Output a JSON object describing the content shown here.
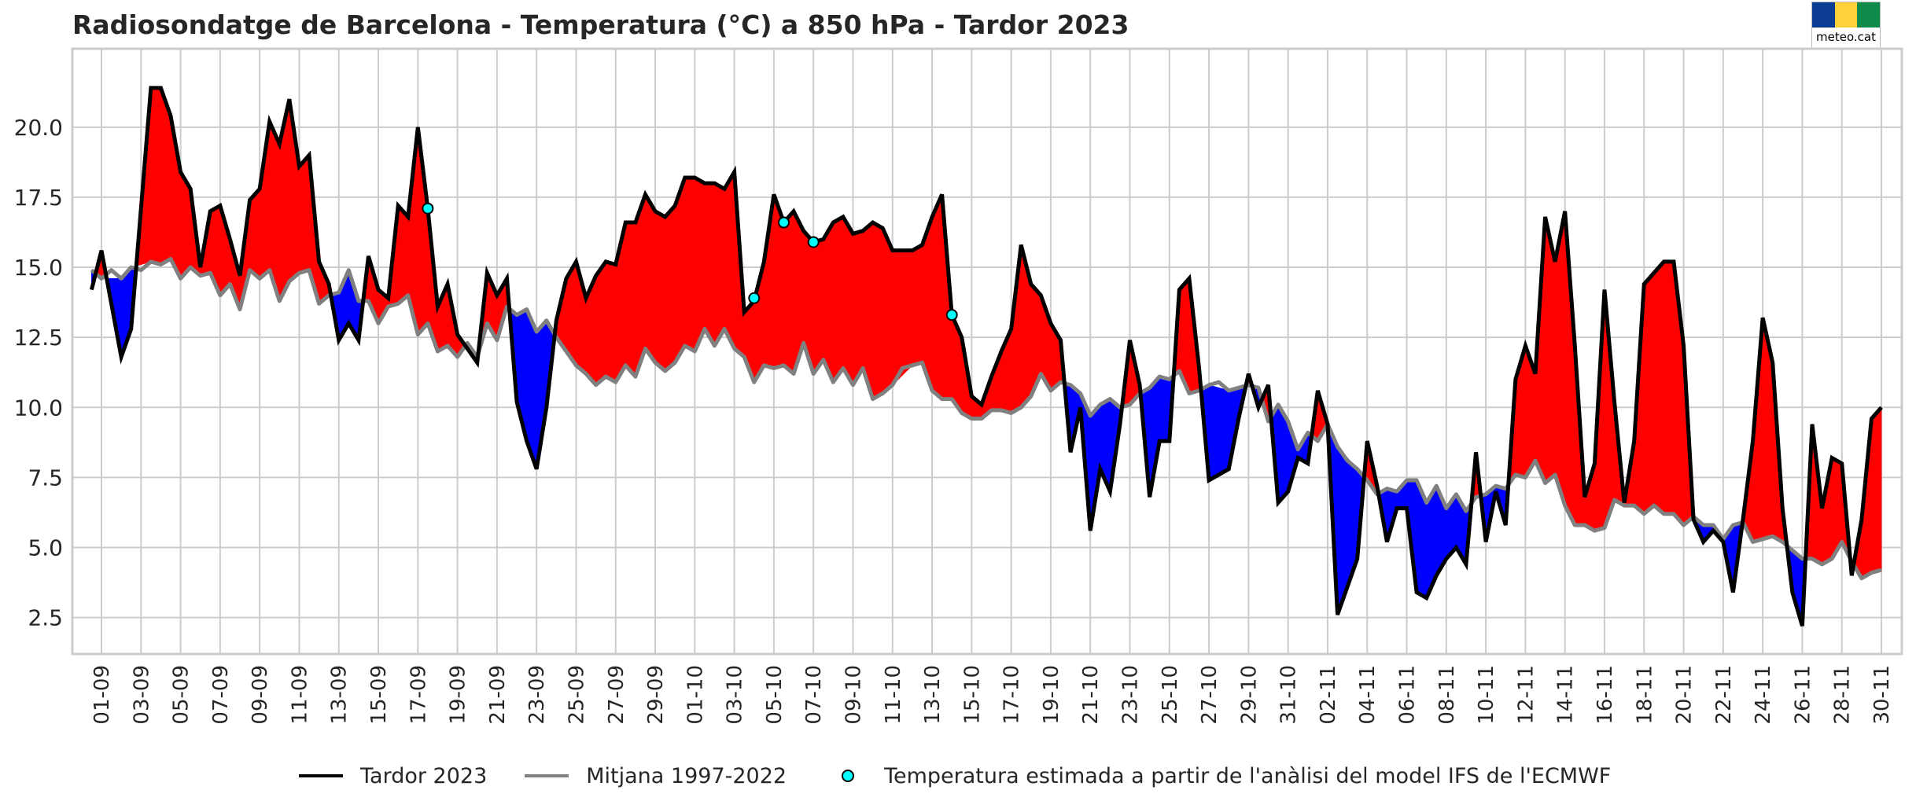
{
  "title": "Radiosondatge de Barcelona - Temperatura (°C) a 850 hPa - Tardor 2023",
  "logo": {
    "text": "meteo.cat",
    "colors": [
      "#0a3d91",
      "#ffd23c",
      "#0f8a4a"
    ]
  },
  "legend": [
    {
      "label": "Tardor 2023",
      "color": "#000000",
      "kind": "line"
    },
    {
      "label": "Mitjana 1997-2022",
      "color": "#808080",
      "kind": "line"
    },
    {
      "label": "Temperatura estimada a partir de l'anàlisi del model IFS de l'ECMWF",
      "color": "#00ffff",
      "kind": "dot"
    }
  ],
  "chart_data": {
    "type": "line",
    "title": "Radiosondatge de Barcelona - Temperatura (°C) a 850 hPa - Tardor 2023",
    "xlabel": "",
    "ylabel": "",
    "x_unit": "days since 01-09",
    "xlim": [
      -1.5,
      91
    ],
    "ylim": [
      1.2,
      22.8
    ],
    "yticks": [
      2.5,
      5.0,
      7.5,
      10.0,
      12.5,
      15.0,
      17.5,
      20.0
    ],
    "ytick_labels": [
      "2.5",
      "5.0",
      "7.5",
      "10.0",
      "12.5",
      "15.0",
      "17.5",
      "20.0"
    ],
    "xtick_labels": [
      "01-09",
      "03-09",
      "05-09",
      "07-09",
      "09-09",
      "11-09",
      "13-09",
      "15-09",
      "17-09",
      "19-09",
      "21-09",
      "23-09",
      "25-09",
      "27-09",
      "29-09",
      "01-10",
      "03-10",
      "05-10",
      "07-10",
      "09-10",
      "11-10",
      "13-10",
      "15-10",
      "17-10",
      "19-10",
      "21-10",
      "23-10",
      "25-10",
      "27-10",
      "29-10",
      "31-10",
      "02-11",
      "04-11",
      "06-11",
      "08-11",
      "10-11",
      "12-11",
      "14-11",
      "16-11",
      "18-11",
      "20-11",
      "22-11",
      "24-11",
      "26-11",
      "28-11",
      "30-11"
    ],
    "grid": true,
    "fill_above_color": "#ff0000",
    "fill_below_color": "#0000ff",
    "series": [
      {
        "name": "Tardor 2023",
        "color": "#000000",
        "x": [
          -0.5,
          0,
          1,
          1.5,
          2.5,
          3,
          3.5,
          4,
          4.5,
          5,
          5.5,
          6,
          6.5,
          7,
          7.5,
          8,
          8.5,
          9,
          9.5,
          10,
          10.5,
          11,
          11.5,
          12,
          12.5,
          13,
          13.5,
          14,
          14.5,
          15,
          15.5,
          16,
          16.5,
          17,
          17.5,
          18,
          18.5,
          19,
          19.5,
          20,
          20.5,
          21,
          21.5,
          22,
          22.5,
          23,
          23.5,
          24,
          24.5,
          25,
          25.5,
          26,
          26.5,
          27,
          27.5,
          28,
          28.5,
          29,
          29.5,
          30,
          30.5,
          31,
          31.5,
          32,
          32.5,
          33,
          33.5,
          34,
          34.5,
          35,
          35.5,
          36,
          36.5,
          37,
          37.5,
          38,
          38.5,
          39,
          39.5,
          40,
          41,
          41.5,
          42,
          42.5,
          43,
          43.5,
          44,
          44.5,
          45,
          45.5,
          46,
          46.5,
          47,
          47.5,
          48,
          48.5,
          49,
          49.5,
          50,
          50.5,
          51,
          51.5,
          52,
          52.5,
          53,
          53.5,
          54,
          54.5,
          55,
          55.5,
          56,
          57,
          57.5,
          58,
          58.5,
          59,
          59.5,
          60,
          60.5,
          61,
          61.5,
          62,
          62.5,
          63.5,
          64,
          64.5,
          65,
          65.5,
          66,
          66.5,
          67,
          67.5,
          68,
          68.5,
          69,
          69.5,
          70,
          70.5,
          71,
          71.5,
          72,
          72.5,
          73,
          73.5,
          74,
          74.5,
          75,
          75.5,
          76,
          76.5,
          77,
          77.5,
          78,
          78.5,
          79,
          79.5,
          80,
          80.5,
          81,
          81.5,
          82,
          82.5,
          83,
          83.5,
          84,
          84.5,
          85,
          85.5,
          86,
          86.5,
          87,
          87.5,
          88,
          88.5,
          89,
          89.5,
          90
        ],
        "y": [
          14.2,
          15.6,
          11.8,
          12.8,
          21.4,
          21.4,
          20.4,
          18.4,
          17.8,
          15.0,
          17.0,
          17.2,
          16.0,
          14.7,
          17.4,
          17.8,
          20.2,
          19.4,
          21.0,
          18.6,
          19.0,
          15.2,
          14.4,
          12.4,
          13.0,
          12.4,
          15.4,
          14.2,
          13.9,
          17.2,
          16.8,
          20.0,
          17.1,
          13.6,
          14.4,
          12.6,
          12.1,
          11.6,
          14.8,
          14.0,
          14.6,
          10.2,
          8.8,
          7.8,
          10.0,
          13.1,
          14.6,
          15.2,
          13.9,
          14.7,
          15.2,
          15.1,
          16.6,
          16.6,
          17.6,
          17.0,
          16.8,
          17.2,
          18.2,
          18.2,
          18.0,
          18.0,
          17.8,
          18.4,
          13.4,
          13.8,
          15.2,
          17.6,
          16.6,
          17.0,
          16.3,
          15.9,
          16.0,
          16.6,
          16.8,
          16.2,
          16.3,
          16.6,
          16.4,
          15.6,
          15.6,
          15.8,
          16.8,
          17.6,
          13.3,
          12.5,
          10.4,
          10.1,
          11.1,
          12.0,
          12.8,
          15.8,
          14.4,
          14.0,
          13.0,
          12.4,
          8.4,
          10.0,
          5.6,
          7.8,
          7.0,
          9.4,
          12.4,
          10.8,
          6.8,
          8.8,
          8.8,
          14.2,
          14.6,
          11.4,
          7.4,
          7.8,
          9.6,
          11.2,
          10.0,
          10.8,
          6.6,
          7.0,
          8.2,
          8.0,
          10.6,
          9.4,
          2.6,
          4.6,
          8.8,
          7.2,
          5.2,
          6.4,
          6.4,
          3.4,
          3.2,
          4.0,
          4.6,
          5.0,
          4.4,
          8.4,
          5.2,
          7.0,
          5.8,
          11.0,
          12.2,
          11.2,
          16.8,
          15.2,
          17.0,
          12.2,
          6.8,
          8.0,
          14.2,
          10.2,
          6.6,
          8.8,
          14.4,
          14.8,
          15.2,
          15.2,
          12.2,
          6.0,
          5.2,
          5.6,
          5.2,
          3.4,
          6.0,
          8.8,
          13.2,
          11.6,
          6.4,
          3.4,
          2.2,
          9.4,
          6.4,
          8.2,
          8.0,
          4.0,
          6.0,
          9.6,
          10.0
        ]
      },
      {
        "name": "Mitjana 1997-2022",
        "color": "#808080",
        "x": [
          -0.5,
          0,
          0.5,
          1,
          1.5,
          2,
          2.5,
          3,
          3.5,
          4,
          4.5,
          5,
          5.5,
          6,
          6.5,
          7,
          7.5,
          8,
          8.5,
          9,
          9.5,
          10,
          10.5,
          11,
          11.5,
          12,
          12.5,
          13,
          13.5,
          14,
          14.5,
          15,
          15.5,
          16,
          16.5,
          17,
          17.5,
          18,
          18.5,
          19,
          19.5,
          20,
          20.5,
          21,
          21.5,
          22,
          22.5,
          23,
          23.5,
          24,
          24.5,
          25,
          25.5,
          26,
          26.5,
          27,
          27.5,
          28,
          28.5,
          29,
          29.5,
          30,
          30.5,
          31,
          31.5,
          32,
          32.5,
          33,
          33.5,
          34,
          34.5,
          35,
          35.5,
          36,
          36.5,
          37,
          37.5,
          38,
          38.5,
          39,
          39.5,
          40,
          40.5,
          41,
          41.5,
          42,
          42.5,
          43,
          43.5,
          44,
          44.5,
          45,
          45.5,
          46,
          46.5,
          47,
          47.5,
          48,
          48.5,
          49,
          49.5,
          50,
          50.5,
          51,
          51.5,
          52,
          52.5,
          53,
          53.5,
          54,
          54.5,
          55,
          55.5,
          56,
          56.5,
          57,
          57.5,
          58,
          58.5,
          59,
          59.5,
          60,
          60.5,
          61,
          61.5,
          62,
          62.5,
          63,
          63.5,
          64,
          64.5,
          65,
          65.5,
          66,
          66.5,
          67,
          67.5,
          68,
          68.5,
          69,
          69.5,
          70,
          70.5,
          71,
          71.5,
          72,
          72.5,
          73,
          73.5,
          74,
          74.5,
          75,
          75.5,
          76,
          76.5,
          77,
          77.5,
          78,
          78.5,
          79,
          79.5,
          80,
          80.5,
          81,
          81.5,
          82,
          82.5,
          83,
          83.5,
          84,
          84.5,
          85,
          85.5,
          86,
          86.5,
          87,
          87.5,
          88,
          88.5,
          89,
          89.5,
          90
        ],
        "y": [
          14.9,
          14.6,
          14.9,
          14.6,
          15.0,
          14.9,
          15.2,
          15.1,
          15.3,
          14.6,
          15.0,
          14.7,
          14.8,
          14.0,
          14.4,
          13.5,
          14.9,
          14.6,
          14.9,
          13.8,
          14.5,
          14.8,
          14.9,
          13.7,
          14.0,
          14.1,
          14.9,
          13.8,
          13.8,
          13.0,
          13.6,
          13.7,
          14.0,
          12.6,
          13.0,
          12.0,
          12.2,
          11.8,
          12.3,
          11.8,
          13.0,
          12.4,
          13.6,
          13.3,
          13.5,
          12.7,
          13.1,
          12.5,
          12.0,
          11.5,
          11.2,
          10.8,
          11.1,
          10.9,
          11.5,
          11.1,
          12.1,
          11.6,
          11.3,
          11.6,
          12.2,
          12.0,
          12.8,
          12.2,
          12.8,
          12.1,
          11.8,
          10.9,
          11.5,
          11.4,
          11.5,
          11.2,
          12.3,
          11.2,
          11.7,
          10.9,
          11.4,
          10.8,
          11.4,
          10.3,
          10.5,
          10.8,
          11.4,
          11.5,
          11.6,
          10.6,
          10.3,
          10.3,
          9.8,
          9.6,
          9.6,
          9.9,
          9.9,
          9.8,
          10.0,
          10.4,
          11.2,
          10.6,
          10.9,
          10.8,
          10.5,
          9.7,
          10.1,
          10.3,
          10.0,
          10.1,
          10.5,
          10.7,
          11.1,
          11.0,
          11.3,
          10.5,
          10.6,
          10.8,
          10.9,
          10.6,
          10.7,
          10.8,
          10.7,
          9.5,
          10.1,
          9.5,
          8.5,
          9.1,
          8.8,
          9.4,
          8.6,
          8.1,
          7.8,
          7.4,
          6.9,
          7.1,
          7.0,
          7.4,
          7.4,
          6.6,
          7.2,
          6.4,
          6.9,
          6.3,
          6.8,
          6.9,
          7.2,
          7.1,
          7.6,
          7.5,
          8.1,
          7.3,
          7.6,
          6.5,
          5.8,
          5.8,
          5.6,
          5.7,
          6.7,
          6.5,
          6.5,
          6.2,
          6.5,
          6.2,
          6.2,
          5.8,
          6.1,
          5.8,
          5.8,
          5.3,
          5.8,
          5.9,
          5.2,
          5.3,
          5.4,
          5.2,
          4.9,
          4.6,
          4.6,
          4.4,
          4.6,
          5.2,
          4.5,
          3.9,
          4.1,
          4.2
        ]
      },
      {
        "name": "Temperatura estimada a partir de l'anàlisi del model IFS de l'ECMWF",
        "color": "#00ffff",
        "kind": "scatter",
        "x": [
          16.5,
          33,
          34.5,
          36,
          43
        ],
        "y": [
          17.1,
          13.9,
          16.6,
          15.9,
          13.3
        ]
      }
    ]
  }
}
